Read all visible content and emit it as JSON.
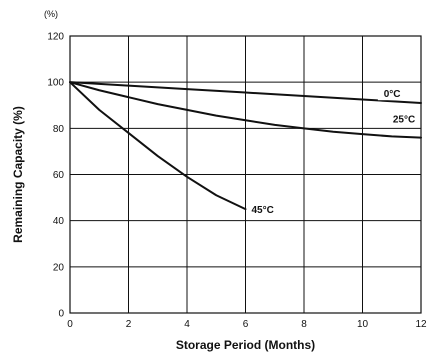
{
  "chart_data": {
    "type": "line",
    "xlabel": "Storage Period (Months)",
    "ylabel": "Remaining Capacity (%)",
    "y_unit": "(%)",
    "xlim": [
      0,
      12
    ],
    "ylim": [
      0,
      120
    ],
    "x_ticks": [
      "0",
      "2",
      "4",
      "6",
      "8",
      "10",
      "12"
    ],
    "y_ticks": [
      "0",
      "20",
      "40",
      "60",
      "80",
      "100",
      "120"
    ],
    "grid": true,
    "legend": "inline labels",
    "line_color": "#111111",
    "series": [
      {
        "name": "0°C",
        "x": [
          0,
          2,
          4,
          6,
          8,
          10,
          12
        ],
        "y": [
          100,
          98.5,
          97,
          95.5,
          94,
          92.5,
          91
        ]
      },
      {
        "name": "25°C",
        "x": [
          0,
          1,
          2,
          3,
          4,
          5,
          6,
          7,
          8,
          9,
          10,
          11,
          12
        ],
        "y": [
          100,
          96.5,
          93.5,
          90.5,
          88,
          85.5,
          83.5,
          81.5,
          80,
          78.5,
          77.5,
          76.5,
          76
        ]
      },
      {
        "name": "45°C",
        "x": [
          0,
          1,
          2,
          3,
          4,
          5,
          6
        ],
        "y": [
          100,
          88,
          78,
          68,
          59,
          51,
          45
        ]
      }
    ]
  }
}
